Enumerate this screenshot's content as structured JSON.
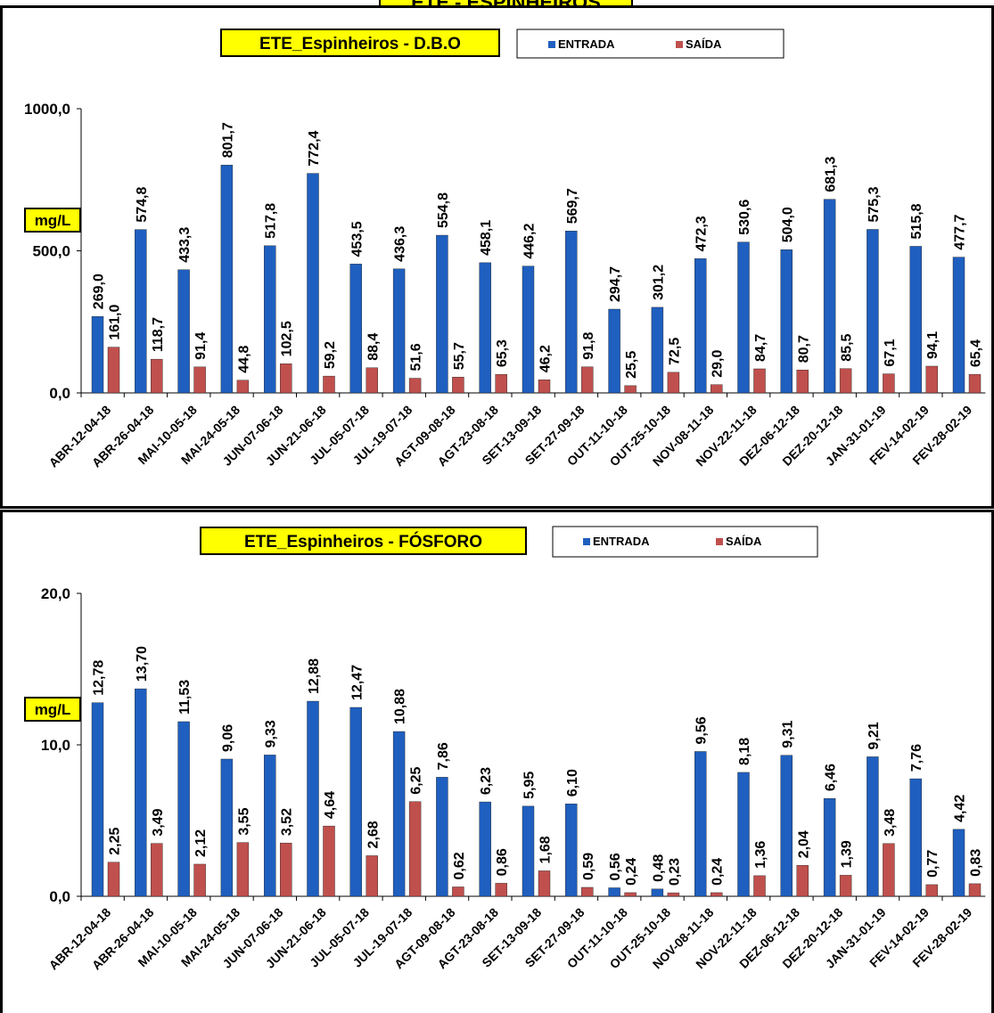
{
  "page": {
    "banner_text": "ETE - ESPINHEIROS"
  },
  "chart_data": [
    {
      "type": "bar",
      "title": "ETE_Espinheiros - D.B.O",
      "ylabel": "mg/L",
      "ylim": [
        0,
        1000
      ],
      "yticks": [
        "0,0",
        "500,0",
        "1000,0"
      ],
      "grid": false,
      "legend": "top-right",
      "categories": [
        "ABR-12-04-18",
        "ABR-26-04-18",
        "MAI-10-05-18",
        "MAI-24-05-18",
        "JUN-07-06-18",
        "JUN-21-06-18",
        "JUL-05-07-18",
        "JUL-19-07-18",
        "AGT-09-08-18",
        "AGT-23-08-18",
        "SET-13-09-18",
        "SET-27-09-18",
        "OUT-11-10-18",
        "OUT-25-10-18",
        "NOV-08-11-18",
        "NOV-22-11-18",
        "DEZ-06-12-18",
        "DEZ-20-12-18",
        "JAN-31-01-19",
        "FEV-14-02-19",
        "FEV-28-02-19"
      ],
      "series": [
        {
          "name": "ENTRADA",
          "color": "#1f5fbf",
          "values": [
            269.0,
            574.8,
            433.3,
            801.7,
            517.8,
            772.4,
            453.5,
            436.3,
            554.8,
            458.1,
            446.2,
            569.7,
            294.7,
            301.2,
            472.3,
            530.6,
            504.0,
            681.3,
            575.3,
            515.8,
            477.7
          ],
          "labels": [
            "269,0",
            "574,8",
            "433,3",
            "801,7",
            "517,8",
            "772,4",
            "453,5",
            "436,3",
            "554,8",
            "458,1",
            "446,2",
            "569,7",
            "294,7",
            "301,2",
            "472,3",
            "530,6",
            "504,0",
            "681,3",
            "575,3",
            "515,8",
            "477,7"
          ]
        },
        {
          "name": "SAÍDA",
          "color": "#c0504d",
          "values": [
            161.0,
            118.7,
            91.4,
            44.8,
            102.5,
            59.2,
            88.4,
            51.6,
            55.7,
            65.3,
            46.2,
            91.8,
            25.5,
            72.5,
            29.0,
            84.7,
            80.7,
            85.5,
            67.1,
            94.1,
            65.4
          ],
          "labels": [
            "161,0",
            "118,7",
            "91,4",
            "44,8",
            "102,5",
            "59,2",
            "88,4",
            "51,6",
            "55,7",
            "65,3",
            "46,2",
            "91,8",
            "25,5",
            "72,5",
            "29,0",
            "84,7",
            "80,7",
            "85,5",
            "67,1",
            "94,1",
            "65,4"
          ]
        }
      ]
    },
    {
      "type": "bar",
      "title": "ETE_Espinheiros - FÓSFORO",
      "ylabel": "mg/L",
      "ylim": [
        0,
        20
      ],
      "yticks": [
        "0,0",
        "10,0",
        "20,0"
      ],
      "grid": false,
      "legend": "top-right",
      "categories": [
        "ABR-12-04-18",
        "ABR-26-04-18",
        "MAI-10-05-18",
        "MAI-24-05-18",
        "JUN-07-06-18",
        "JUN-21-06-18",
        "JUL-05-07-18",
        "JUL-19-07-18",
        "AGT-09-08-18",
        "AGT-23-08-18",
        "SET-13-09-18",
        "SET-27-09-18",
        "OUT-11-10-18",
        "OUT-25-10-18",
        "NOV-08-11-18",
        "NOV-22-11-18",
        "DEZ-06-12-18",
        "DEZ-20-12-18",
        "JAN-31-01-19",
        "FEV-14-02-19",
        "FEV-28-02-19"
      ],
      "series": [
        {
          "name": "ENTRADA",
          "color": "#1f5fbf",
          "values": [
            12.78,
            13.7,
            11.53,
            9.06,
            9.33,
            12.88,
            12.47,
            10.88,
            7.86,
            6.23,
            5.95,
            6.1,
            0.56,
            0.48,
            9.56,
            8.18,
            9.31,
            6.46,
            9.21,
            7.76,
            4.42
          ],
          "labels": [
            "12,78",
            "13,70",
            "11,53",
            "9,06",
            "9,33",
            "12,88",
            "12,47",
            "10,88",
            "7,86",
            "6,23",
            "5,95",
            "6,10",
            "0,56",
            "0,48",
            "9,56",
            "8,18",
            "9,31",
            "6,46",
            "9,21",
            "7,76",
            "4,42"
          ]
        },
        {
          "name": "SAÍDA",
          "color": "#c0504d",
          "values": [
            2.25,
            3.49,
            2.12,
            3.55,
            3.52,
            4.64,
            2.68,
            6.25,
            0.62,
            0.86,
            1.68,
            0.59,
            0.24,
            0.23,
            0.24,
            1.36,
            2.04,
            1.39,
            3.48,
            0.77,
            0.83
          ],
          "labels": [
            "2,25",
            "3,49",
            "2,12",
            "3,55",
            "3,52",
            "4,64",
            "2,68",
            "6,25",
            "0,62",
            "0,86",
            "1,68",
            "0,59",
            "0,24",
            "0,23",
            "0,24",
            "1,36",
            "2,04",
            "1,39",
            "3,48",
            "0,77",
            "0,83"
          ]
        }
      ]
    }
  ]
}
